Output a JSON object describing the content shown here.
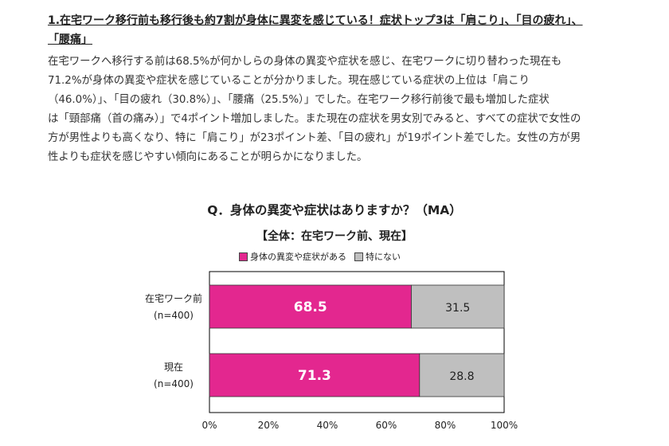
{
  "article": {
    "heading_lines": [
      "1.在宅ワーク移行前も移行後も約7割が身体に異変を感じている！症状トップ3は「肩こり」、「目の疲れ」、",
      "「腰痛」"
    ],
    "body_lines": [
      "在宅ワークへ移行する前は68.5%が何かしらの身体の異変や症状を感じ、在宅ワークに切り替わった現在も",
      "71.2%が身体の異変や症状を感じていることが分かりました。現在感じている症状の上位は「肩こり",
      "（46.0%）」、「目の疲れ（30.8%）」、「腰痛（25.5%）」でした。在宅ワーク移行前後で最も増加した症状",
      "は「頸部痛（首の痛み）」で4ポイント増加しました。また現在の症状を男女別でみると、すべての症状で女性の",
      "方が男性よりも高くなり、特に「肩こり」が23ポイント差、「目の疲れ」が19ポイント差でした。女性の方が男",
      "性よりも症状を感じやすい傾向にあることが明らかになりました。"
    ]
  },
  "chart_data": {
    "type": "bar",
    "orientation": "horizontal-stacked",
    "title": "Q．身体の異変や症状はありますか？（MA）",
    "subtitle": "【全体：在宅ワーク前、現在】",
    "categories": [
      {
        "label": "在宅ワーク前",
        "n": "(n=400)"
      },
      {
        "label": "現在",
        "n": "(n=400)"
      }
    ],
    "series": [
      {
        "name": "身体の異変や症状がある",
        "color": "#e3278f",
        "label_color": "#ffffff",
        "values": [
          68.5,
          71.3
        ]
      },
      {
        "name": "特にない",
        "color": "#bfbfbf",
        "label_color": "#222222",
        "values": [
          31.5,
          28.8
        ]
      }
    ],
    "xlim": [
      0,
      100
    ],
    "xticks": [
      "0%",
      "20%",
      "40%",
      "60%",
      "80%",
      "100%"
    ],
    "legend_position": "top",
    "grid": false
  }
}
